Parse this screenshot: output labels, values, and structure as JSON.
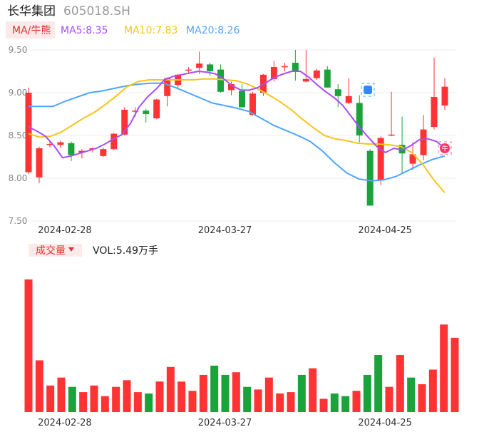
{
  "header": {
    "stock_name": "长华集团",
    "stock_code": "605018.SH"
  },
  "legend": {
    "indicator_label": "MA/牛熊",
    "ma5": "MA5:8.35",
    "ma10": "MA10:7.83",
    "ma20": "MA20:8.26"
  },
  "volume_panel": {
    "indicator_label": "成交量",
    "vol_label": "VOL:5.49万手"
  },
  "colors": {
    "up": "#ff3333",
    "down": "#1aa33a",
    "ma5": "#a64dff",
    "ma10": "#f5c518",
    "ma20": "#4da6ff",
    "label_bg": "#fce9e9",
    "label_text": "#e03030",
    "grid": "#eeeeee"
  },
  "markers": {
    "low_point_badge_icon": "blue-square-badge-icon",
    "bull_badge_icon": "red-bull-badge-icon",
    "bull_badge_text": "牛"
  },
  "chart_data": {
    "type": "candlestick",
    "price_axis": {
      "ylim": [
        7.5,
        9.6
      ],
      "ticks": [
        "9.50",
        "9.00",
        "8.50",
        "8.00",
        "7.50"
      ],
      "tick_values": [
        9.5,
        9.0,
        8.5,
        8.0,
        7.5
      ]
    },
    "date_labels": [
      {
        "index": 3,
        "label": "2024-02-28"
      },
      {
        "index": 18,
        "label": "2024-03-27"
      },
      {
        "index": 33,
        "label": "2024-04-25"
      }
    ],
    "candles": [
      {
        "o": 8.07,
        "h": 9.06,
        "l": 8.05,
        "c": 9.0
      },
      {
        "o": 8.01,
        "h": 8.37,
        "l": 7.94,
        "c": 8.35
      },
      {
        "o": 8.39,
        "h": 8.43,
        "l": 8.36,
        "c": 8.4
      },
      {
        "o": 8.39,
        "h": 8.44,
        "l": 8.35,
        "c": 8.42
      },
      {
        "o": 8.41,
        "h": 8.43,
        "l": 8.2,
        "c": 8.27
      },
      {
        "o": 8.3,
        "h": 8.34,
        "l": 8.23,
        "c": 8.32
      },
      {
        "o": 8.34,
        "h": 8.36,
        "l": 8.3,
        "c": 8.35
      },
      {
        "o": 8.26,
        "h": 8.36,
        "l": 8.25,
        "c": 8.34
      },
      {
        "o": 8.34,
        "h": 8.53,
        "l": 8.33,
        "c": 8.52
      },
      {
        "o": 8.51,
        "h": 8.83,
        "l": 8.5,
        "c": 8.8
      },
      {
        "o": 8.79,
        "h": 8.83,
        "l": 8.72,
        "c": 8.79
      },
      {
        "o": 8.79,
        "h": 8.81,
        "l": 8.65,
        "c": 8.75
      },
      {
        "o": 8.7,
        "h": 8.93,
        "l": 8.69,
        "c": 8.92
      },
      {
        "o": 8.96,
        "h": 9.18,
        "l": 8.84,
        "c": 9.17
      },
      {
        "o": 9.09,
        "h": 9.22,
        "l": 9.05,
        "c": 9.21
      },
      {
        "o": 9.26,
        "h": 9.3,
        "l": 9.23,
        "c": 9.27
      },
      {
        "o": 9.29,
        "h": 9.48,
        "l": 9.22,
        "c": 9.34
      },
      {
        "o": 9.33,
        "h": 9.35,
        "l": 9.2,
        "c": 9.25
      },
      {
        "o": 9.27,
        "h": 9.33,
        "l": 9.0,
        "c": 9.01
      },
      {
        "o": 9.03,
        "h": 9.13,
        "l": 8.97,
        "c": 9.1
      },
      {
        "o": 9.02,
        "h": 9.1,
        "l": 8.82,
        "c": 8.83
      },
      {
        "o": 8.74,
        "h": 9.01,
        "l": 8.73,
        "c": 8.99
      },
      {
        "o": 9.0,
        "h": 9.22,
        "l": 8.96,
        "c": 9.21
      },
      {
        "o": 9.16,
        "h": 9.37,
        "l": 9.13,
        "c": 9.3
      },
      {
        "o": 9.3,
        "h": 9.35,
        "l": 9.25,
        "c": 9.31
      },
      {
        "o": 9.35,
        "h": 9.5,
        "l": 9.14,
        "c": 9.25
      },
      {
        "o": 9.13,
        "h": 9.5,
        "l": 9.12,
        "c": 9.16
      },
      {
        "o": 9.17,
        "h": 9.28,
        "l": 9.15,
        "c": 9.26
      },
      {
        "o": 9.27,
        "h": 9.31,
        "l": 9.06,
        "c": 9.06
      },
      {
        "o": 9.04,
        "h": 9.1,
        "l": 8.83,
        "c": 8.96
      },
      {
        "o": 8.88,
        "h": 9.17,
        "l": 8.87,
        "c": 8.96
      },
      {
        "o": 8.88,
        "h": 8.97,
        "l": 8.42,
        "c": 8.5
      },
      {
        "o": 8.32,
        "h": 8.34,
        "l": 7.68,
        "c": 7.68
      },
      {
        "o": 7.98,
        "h": 8.49,
        "l": 7.92,
        "c": 8.47
      },
      {
        "o": 8.5,
        "h": 9.01,
        "l": 8.49,
        "c": 8.51
      },
      {
        "o": 8.39,
        "h": 8.72,
        "l": 8.06,
        "c": 8.29
      },
      {
        "o": 8.17,
        "h": 8.42,
        "l": 8.1,
        "c": 8.28
      },
      {
        "o": 8.27,
        "h": 8.74,
        "l": 8.21,
        "c": 8.57
      },
      {
        "o": 8.6,
        "h": 9.41,
        "l": 8.57,
        "c": 8.95
      },
      {
        "o": 8.85,
        "h": 9.17,
        "l": 8.8,
        "c": 9.07
      }
    ],
    "ma5": [
      8.6,
      8.55,
      8.49,
      8.38,
      8.24,
      8.26,
      8.29,
      8.32,
      8.35,
      8.4,
      8.46,
      8.51,
      8.64,
      8.83,
      8.95,
      9.04,
      9.15,
      9.19,
      9.21,
      9.23,
      9.25,
      9.24,
      9.22,
      9.16,
      9.08,
      9.03,
      9.03,
      9.06,
      9.12,
      9.18,
      9.22,
      9.25,
      9.25,
      9.18,
      9.09,
      9.01,
      8.94,
      8.85,
      8.72,
      8.59,
      8.48,
      8.37,
      8.3,
      8.35,
      8.33,
      8.38,
      8.45,
      8.46,
      8.43,
      8.35
    ],
    "ma10": [
      8.52,
      8.48,
      8.49,
      8.54,
      8.62,
      8.7,
      8.77,
      8.86,
      8.96,
      9.07,
      9.13,
      9.15,
      9.15,
      9.15,
      9.15,
      9.15,
      9.16,
      9.16,
      9.15,
      9.14,
      9.1,
      9.04,
      8.97,
      8.89,
      8.8,
      8.69,
      8.59,
      8.5,
      8.46,
      8.44,
      8.41,
      8.4,
      8.4,
      8.39,
      8.37,
      8.3,
      8.16,
      7.98,
      7.83
    ],
    "ma20": [
      8.84,
      8.84,
      8.84,
      8.9,
      8.95,
      9.0,
      9.02,
      9.05,
      9.08,
      9.1,
      9.11,
      9.11,
      9.06,
      9.0,
      8.94,
      8.88,
      8.85,
      8.82,
      8.78,
      8.7,
      8.62,
      8.56,
      8.5,
      8.43,
      8.32,
      8.18,
      8.06,
      7.99,
      7.97,
      7.98,
      8.02,
      8.09,
      8.16,
      8.22,
      8.26
    ],
    "volume": [
      100,
      39,
      20,
      26,
      19,
      15,
      20,
      12,
      19,
      24,
      15,
      14,
      23,
      34,
      23,
      16,
      28,
      35,
      28,
      30,
      19,
      17,
      26,
      14,
      15,
      28,
      33,
      10,
      14,
      12,
      16,
      28,
      43,
      19,
      43,
      26,
      21,
      32,
      66,
      56
    ]
  }
}
